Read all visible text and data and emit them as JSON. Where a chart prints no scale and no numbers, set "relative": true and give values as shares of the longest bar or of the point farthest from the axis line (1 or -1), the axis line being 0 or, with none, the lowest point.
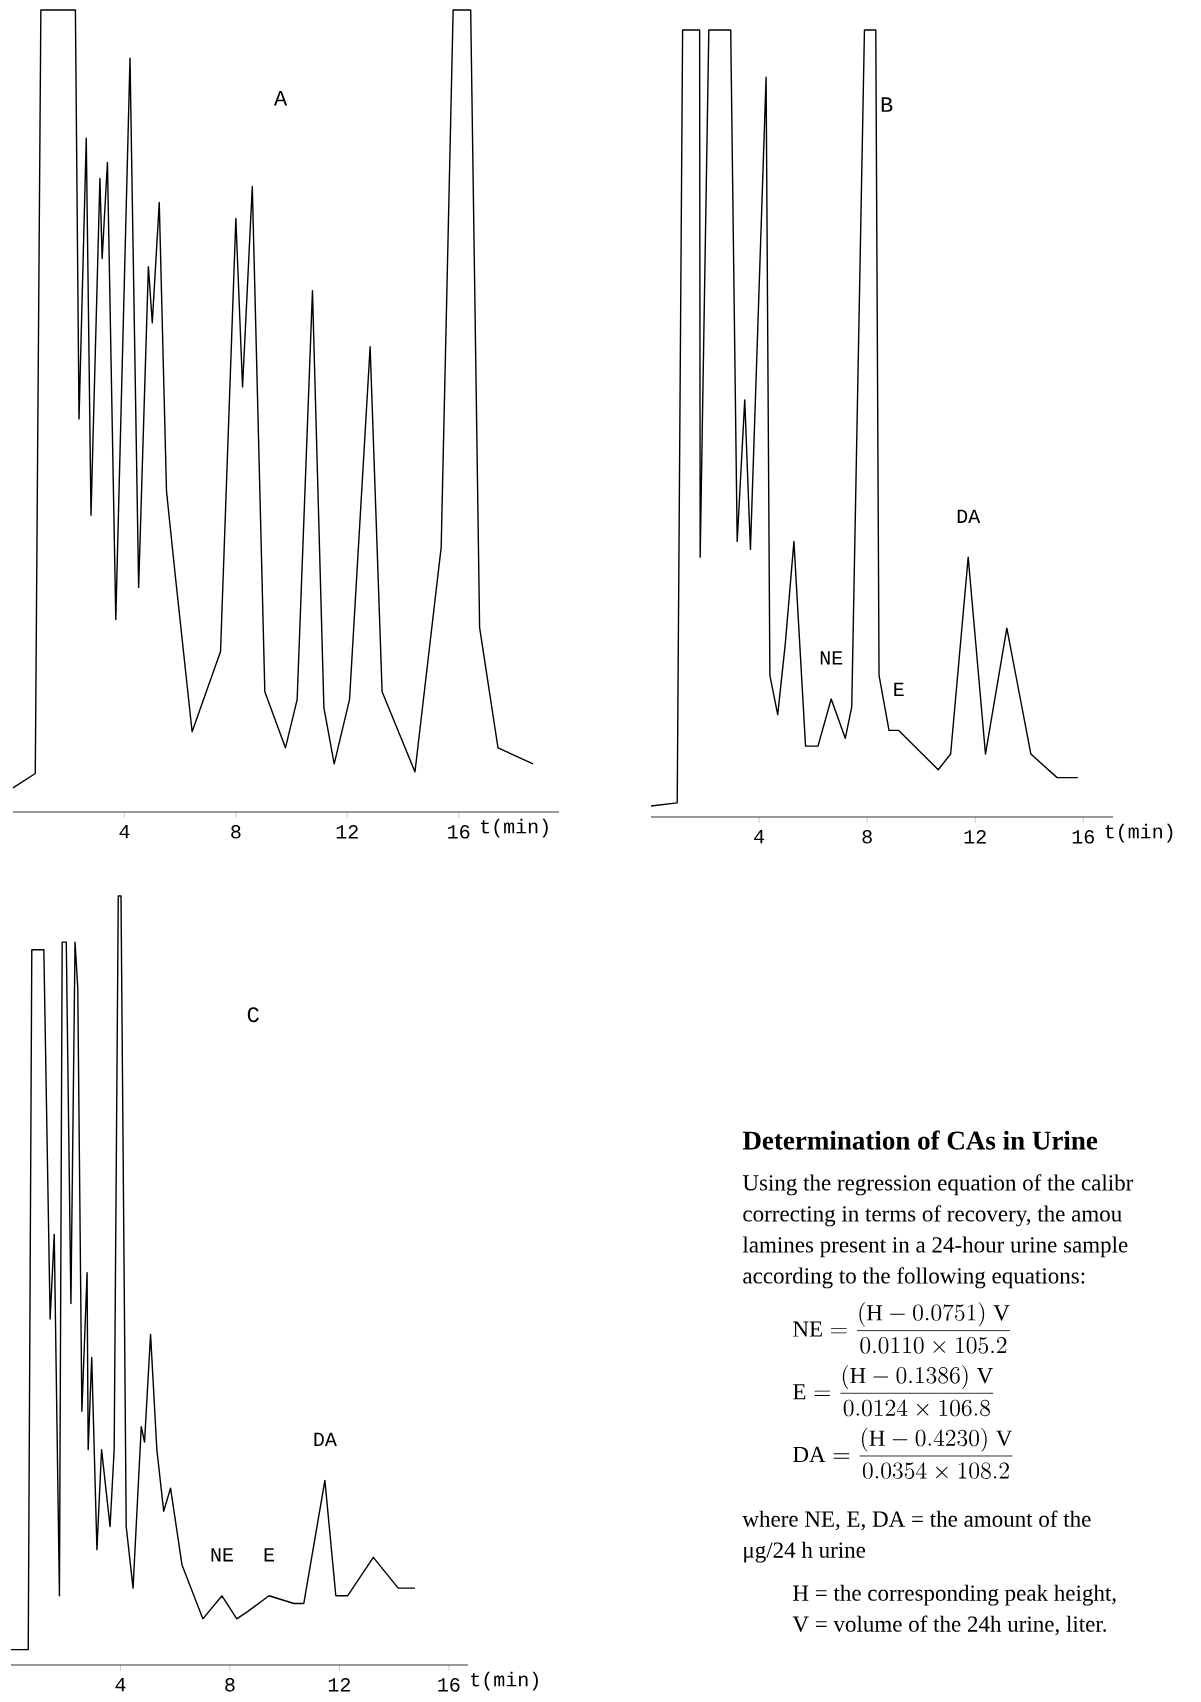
{
  "chart_data": [
    {
      "type": "line",
      "title": "A",
      "xlabel": "t(min)",
      "relative": true,
      "xlim": [
        0,
        19.6
      ],
      "xticks": [
        4,
        8,
        12,
        16
      ],
      "x": [
        0,
        0.8,
        1.0,
        2.24,
        2.37,
        2.63,
        2.8,
        3.12,
        3.2,
        3.39,
        3.69,
        4.2,
        4.51,
        4.86,
        5.0,
        5.25,
        5.51,
        5.84,
        6.43,
        7.45,
        8.0,
        8.24,
        8.59,
        9.04,
        9.78,
        10.2,
        10.75,
        11.16,
        11.53,
        12.08,
        12.82,
        13.25,
        14.43,
        15.37,
        15.8,
        16.43,
        16.75,
        17.41,
        18.67
      ],
      "series": [
        {
          "color": "#000000",
          "values": [
            0.03,
            0.048,
            1.0,
            1.0,
            0.49,
            0.84,
            0.37,
            0.79,
            0.69,
            0.81,
            0.24,
            0.94,
            0.28,
            0.68,
            0.61,
            0.76,
            0.4,
            0.29,
            0.1,
            0.2,
            0.74,
            0.53,
            0.78,
            0.15,
            0.08,
            0.14,
            0.65,
            0.13,
            0.06,
            0.14,
            0.58,
            0.15,
            0.05,
            0.33,
            1.0,
            1.0,
            0.23,
            0.08,
            0.06
          ]
        }
      ]
    },
    {
      "type": "line",
      "title": "B",
      "xlabel": "t(min)",
      "relative": true,
      "xlim": [
        0,
        17.1
      ],
      "xticks": [
        4,
        8,
        12,
        16
      ],
      "x": [
        0,
        0.97,
        1.17,
        1.8,
        1.82,
        2.14,
        2.95,
        3.19,
        3.47,
        3.68,
        4.26,
        4.4,
        4.69,
        4.97,
        5.29,
        5.72,
        5.94,
        6.18,
        6.67,
        7.19,
        7.43,
        7.9,
        8.32,
        8.44,
        8.81,
        9.17,
        10.63,
        11.09,
        11.74,
        12.38,
        13.17,
        14.06,
        15.03,
        15.8
      ],
      "series": [
        {
          "color": "#000000",
          "values": [
            0.014,
            0.018,
            1.0,
            1.0,
            0.33,
            1.0,
            1.0,
            0.35,
            0.53,
            0.34,
            0.94,
            0.18,
            0.13,
            0.22,
            0.35,
            0.09,
            0.09,
            0.09,
            0.15,
            0.1,
            0.14,
            1.0,
            1.0,
            0.18,
            0.11,
            0.11,
            0.06,
            0.08,
            0.33,
            0.08,
            0.24,
            0.08,
            0.05,
            0.05
          ]
        }
      ],
      "annotations": [
        {
          "text": "NE",
          "x": 6.67,
          "y": 0.15
        },
        {
          "text": "E",
          "x": 9.17,
          "y": 0.11
        },
        {
          "text": "DA",
          "x": 11.74,
          "y": 0.33
        }
      ]
    },
    {
      "type": "line",
      "title": "C",
      "xlabel": "t(min)",
      "relative": true,
      "xlim": [
        0,
        16.7
      ],
      "xticks": [
        4,
        8,
        12,
        16
      ],
      "x": [
        0,
        0.63,
        0.76,
        1.2,
        1.43,
        1.58,
        1.77,
        1.87,
        2.02,
        2.19,
        2.34,
        2.44,
        2.59,
        2.78,
        2.82,
        2.95,
        3.14,
        3.31,
        3.62,
        3.77,
        3.92,
        4.02,
        4.21,
        4.46,
        4.76,
        4.88,
        5.1,
        5.33,
        5.58,
        5.83,
        6.25,
        7.01,
        7.71,
        8.25,
        8.67,
        9.43,
        10.34,
        10.7,
        11.47,
        11.87,
        12.3,
        13.24,
        14.15,
        14.76
      ],
      "series": [
        {
          "color": "#000000",
          "values": [
            0.02,
            0.02,
            0.93,
            0.93,
            0.45,
            0.56,
            0.09,
            0.94,
            0.94,
            0.47,
            0.94,
            0.88,
            0.33,
            0.51,
            0.28,
            0.4,
            0.15,
            0.28,
            0.18,
            0.28,
            1.0,
            1.0,
            0.18,
            0.1,
            0.31,
            0.29,
            0.43,
            0.28,
            0.2,
            0.23,
            0.13,
            0.06,
            0.09,
            0.06,
            0.07,
            0.09,
            0.08,
            0.08,
            0.24,
            0.09,
            0.09,
            0.14,
            0.1,
            0.1
          ]
        }
      ],
      "annotations": [
        {
          "text": "NE",
          "x": 7.71,
          "y": 0.09
        },
        {
          "text": "E",
          "x": 9.43,
          "y": 0.09
        },
        {
          "text": "DA",
          "x": 11.47,
          "y": 0.24
        }
      ]
    },
    {
      "type": "other",
      "title": "Determination of CAs in Urine",
      "annotations": [
        "Using the regression equation of the calibr",
        "correcting in terms of recovery, the amou",
        "lamines present in a 24-hour urine sample",
        "according to the following equations:",
        "\\mathrm{NE}=\\frac{(\\mathrm{H}-0.0751)\\;\\mathrm{V}}{0.0110\\times 105.2}",
        "\\mathrm{E}=\\frac{(\\mathrm{H}-0.1386)\\;\\mathrm{V}}{0.0124\\times 106.8}",
        "\\mathrm{DA}=\\frac{(\\mathrm{H}-0.4230)\\;\\mathrm{V}}{0.0354\\times 108.2}",
        "where NE, E, DA = the amount of the",
        "μg/24 h urine",
        "H = the corresponding peak height,",
        "V = volume of the 24h urine, liter."
      ]
    }
  ]
}
